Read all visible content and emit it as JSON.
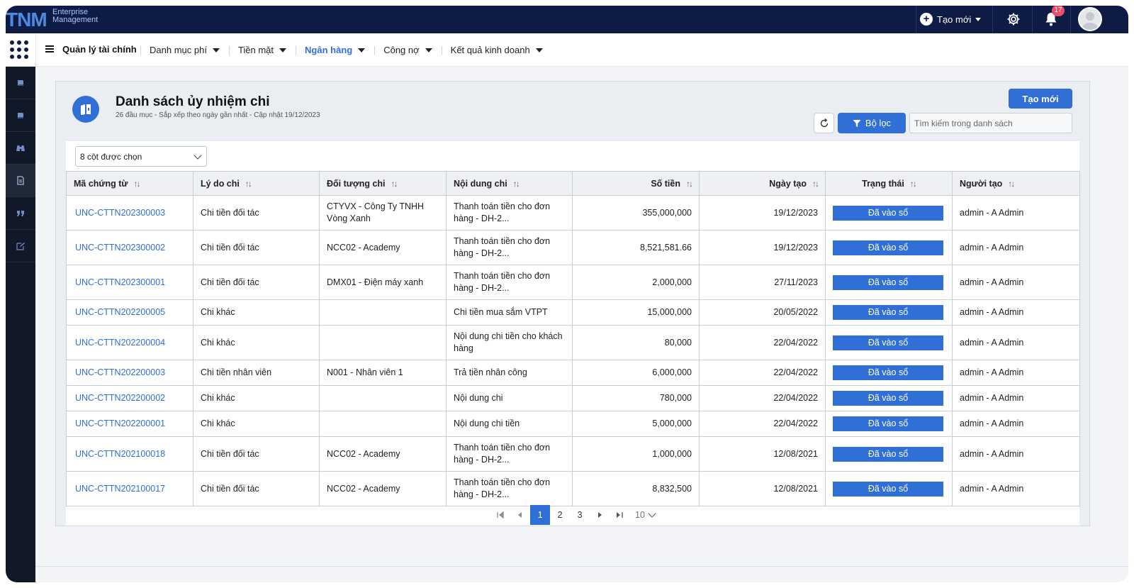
{
  "brand": {
    "logo": "TNM",
    "subtitle_line1": "Enterprise",
    "subtitle_line2": "Management"
  },
  "topbar": {
    "create_label": "Tạo mới",
    "notifications_count": "17",
    "icons": [
      "plus-circle-icon",
      "settings-gear-icon",
      "bell-icon",
      "user-avatar"
    ]
  },
  "menubar": {
    "module_title": "Quản lý tài chính",
    "items": [
      {
        "label": "Danh mục phí",
        "active": false
      },
      {
        "label": "Tiền mặt",
        "active": false
      },
      {
        "label": "Ngân hàng",
        "active": true
      },
      {
        "label": "Công nợ",
        "active": false
      },
      {
        "label": "Kết quả kinh doanh",
        "active": false
      }
    ]
  },
  "sidebar": {
    "icons": [
      "book-icon",
      "book-icon",
      "binoculars-icon",
      "document-icon",
      "quote-icon",
      "edit-icon"
    ],
    "active_index": 3
  },
  "page": {
    "title": "Danh sách ủy nhiệm chi",
    "subtitle": "26 đầu mục - Sắp xếp theo ngày gần nhất - Cập nhật 19/12/2023",
    "create_button": "Tạo mới",
    "filter_button": "Bộ lọc",
    "search_placeholder": "Tìm kiếm trong danh sách",
    "column_select": "8 cột được chọn"
  },
  "table": {
    "headers": [
      "Mã chứng từ",
      "Lý do chi",
      "Đối tượng chi",
      "Nội dung chi",
      "Số tiền",
      "Ngày tạo",
      "Trạng thái",
      "Người tạo"
    ],
    "rows": [
      {
        "code": "UNC-CTTN202300003",
        "reason": "Chi tiền đối tác",
        "target": "CTYVX - Công Ty TNHH Vòng Xanh",
        "content": "Thanh toán tiền cho đơn hàng - DH-2...",
        "amount": "355,000,000",
        "date": "19/12/2023",
        "status": "Đã vào sổ",
        "creator": "admin - A Admin",
        "tall": true
      },
      {
        "code": "UNC-CTTN202300002",
        "reason": "Chi tiền đối tác",
        "target": "NCC02 - Academy",
        "content": "Thanh toán tiền cho đơn hàng - DH-2...",
        "amount": "8,521,581.66",
        "date": "19/12/2023",
        "status": "Đã vào sổ",
        "creator": "admin - A Admin",
        "tall": true
      },
      {
        "code": "UNC-CTTN202300001",
        "reason": "Chi tiền đối tác",
        "target": "DMX01 - Điện máy xanh",
        "content": "Thanh toán tiền cho đơn hàng - DH-2...",
        "amount": "2,000,000",
        "date": "27/11/2023",
        "status": "Đã vào sổ",
        "creator": "admin - A Admin",
        "tall": true
      },
      {
        "code": "UNC-CTTN202200005",
        "reason": "Chi khác",
        "target": "",
        "content": "Chi tiền mua sắm VTPT",
        "amount": "15,000,000",
        "date": "20/05/2022",
        "status": "Đã vào sổ",
        "creator": "admin - A Admin",
        "tall": false
      },
      {
        "code": "UNC-CTTN202200004",
        "reason": "Chi khác",
        "target": "",
        "content": "Nội dung chi tiền cho khách hàng",
        "amount": "80,000",
        "date": "22/04/2022",
        "status": "Đã vào sổ",
        "creator": "admin - A Admin",
        "tall": true
      },
      {
        "code": "UNC-CTTN202200003",
        "reason": "Chi tiền nhân viên",
        "target": "N001 - Nhân viên 1",
        "content": "Trả tiền nhân công",
        "amount": "6,000,000",
        "date": "22/04/2022",
        "status": "Đã vào sổ",
        "creator": "admin - A Admin",
        "tall": false
      },
      {
        "code": "UNC-CTTN202200002",
        "reason": "Chi khác",
        "target": "",
        "content": "Nội dung chi",
        "amount": "780,000",
        "date": "22/04/2022",
        "status": "Đã vào sổ",
        "creator": "admin - A Admin",
        "tall": false
      },
      {
        "code": "UNC-CTTN202200001",
        "reason": "Chi khác",
        "target": "",
        "content": "Nội dung chi tiền",
        "amount": "5,000,000",
        "date": "22/04/2022",
        "status": "Đã vào sổ",
        "creator": "admin - A Admin",
        "tall": false
      },
      {
        "code": "UNC-CTTN202100018",
        "reason": "Chi tiền đối tác",
        "target": "NCC02 - Academy",
        "content": "Thanh toán tiền cho đơn hàng - DH-2...",
        "amount": "1,000,000",
        "date": "12/08/2021",
        "status": "Đã vào sổ",
        "creator": "admin - A Admin",
        "tall": true
      },
      {
        "code": "UNC-CTTN202100017",
        "reason": "Chi tiền đối tác",
        "target": "NCC02 - Academy",
        "content": "Thanh toán tiền cho đơn hàng - DH-2...",
        "amount": "8,832,500",
        "date": "12/08/2021",
        "status": "Đã vào sổ",
        "creator": "admin - A Admin",
        "tall": true
      }
    ]
  },
  "pagination": {
    "pages": [
      "1",
      "2",
      "3"
    ],
    "current": "1",
    "page_size": "10"
  },
  "colors": {
    "primary": "#2f6fd6",
    "navy": "#0d1b45",
    "sidebar": "#111827"
  }
}
